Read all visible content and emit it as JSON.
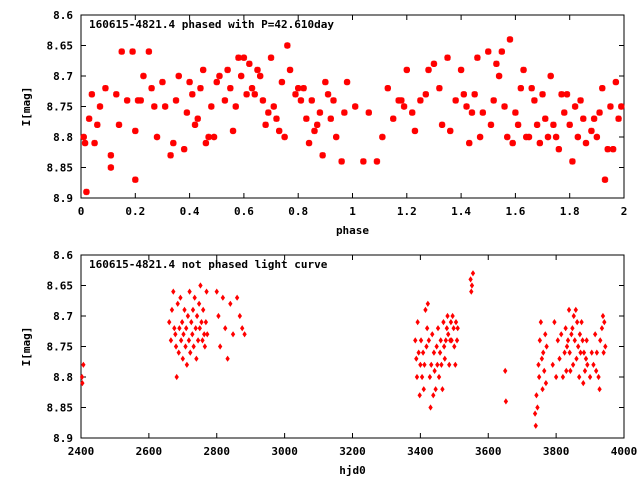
{
  "chart_data": [
    {
      "type": "scatter",
      "title": "160615-4821.4 phased with P=42.610day",
      "xlabel": "phase",
      "ylabel": "I[mag]",
      "xlim": [
        0,
        2
      ],
      "ylim": [
        8.6,
        8.9
      ],
      "y_inverted": true,
      "xticks": [
        "0",
        "0.2",
        "0.4",
        "0.6",
        "0.8",
        "1",
        "1.2",
        "1.4",
        "1.6",
        "1.8",
        "2"
      ],
      "yticks": [
        "8.6",
        "8.65",
        "8.7",
        "8.75",
        "8.8",
        "8.85",
        "8.9"
      ],
      "marker_color": "#ff0000",
      "marker": "star",
      "points": [
        [
          0.01,
          8.8
        ],
        [
          0.015,
          8.81
        ],
        [
          0.02,
          8.89
        ],
        [
          0.03,
          8.77
        ],
        [
          0.04,
          8.73
        ],
        [
          0.05,
          8.81
        ],
        [
          0.06,
          8.78
        ],
        [
          0.07,
          8.75
        ],
        [
          0.09,
          8.72
        ],
        [
          0.11,
          8.83
        ],
        [
          0.11,
          8.85
        ],
        [
          0.13,
          8.73
        ],
        [
          0.14,
          8.78
        ],
        [
          0.15,
          8.66
        ],
        [
          0.17,
          8.74
        ],
        [
          0.19,
          8.66
        ],
        [
          0.2,
          8.87
        ],
        [
          0.2,
          8.79
        ],
        [
          0.21,
          8.74
        ],
        [
          0.22,
          8.74
        ],
        [
          0.23,
          8.7
        ],
        [
          0.25,
          8.66
        ],
        [
          0.26,
          8.72
        ],
        [
          0.27,
          8.75
        ],
        [
          0.28,
          8.8
        ],
        [
          0.3,
          8.71
        ],
        [
          0.31,
          8.75
        ],
        [
          0.33,
          8.83
        ],
        [
          0.34,
          8.81
        ],
        [
          0.35,
          8.74
        ],
        [
          0.36,
          8.7
        ],
        [
          0.38,
          8.82
        ],
        [
          0.39,
          8.76
        ],
        [
          0.4,
          8.71
        ],
        [
          0.41,
          8.73
        ],
        [
          0.42,
          8.78
        ],
        [
          0.43,
          8.77
        ],
        [
          0.44,
          8.72
        ],
        [
          0.45,
          8.69
        ],
        [
          0.46,
          8.81
        ],
        [
          0.47,
          8.8
        ],
        [
          0.48,
          8.75
        ],
        [
          0.49,
          8.8
        ],
        [
          0.5,
          8.71
        ],
        [
          0.51,
          8.7
        ],
        [
          0.53,
          8.74
        ],
        [
          0.54,
          8.69
        ],
        [
          0.55,
          8.72
        ],
        [
          0.56,
          8.79
        ],
        [
          0.57,
          8.75
        ],
        [
          0.58,
          8.67
        ],
        [
          0.59,
          8.7
        ],
        [
          0.6,
          8.67
        ],
        [
          0.61,
          8.73
        ],
        [
          0.62,
          8.68
        ],
        [
          0.63,
          8.72
        ],
        [
          0.64,
          8.73
        ],
        [
          0.65,
          8.69
        ],
        [
          0.66,
          8.7
        ],
        [
          0.67,
          8.74
        ],
        [
          0.68,
          8.78
        ],
        [
          0.69,
          8.76
        ],
        [
          0.7,
          8.67
        ],
        [
          0.71,
          8.75
        ],
        [
          0.72,
          8.77
        ],
        [
          0.73,
          8.79
        ],
        [
          0.74,
          8.71
        ],
        [
          0.75,
          8.8
        ],
        [
          0.76,
          8.65
        ],
        [
          0.77,
          8.69
        ],
        [
          0.79,
          8.73
        ],
        [
          0.8,
          8.72
        ],
        [
          0.81,
          8.74
        ],
        [
          0.82,
          8.72
        ],
        [
          0.83,
          8.77
        ],
        [
          0.84,
          8.81
        ],
        [
          0.85,
          8.74
        ],
        [
          0.86,
          8.79
        ],
        [
          0.87,
          8.78
        ],
        [
          0.88,
          8.76
        ],
        [
          0.89,
          8.83
        ],
        [
          0.9,
          8.71
        ],
        [
          0.91,
          8.73
        ],
        [
          0.92,
          8.77
        ],
        [
          0.93,
          8.74
        ],
        [
          0.94,
          8.8
        ],
        [
          0.96,
          8.84
        ],
        [
          0.97,
          8.76
        ],
        [
          0.98,
          8.71
        ],
        [
          1.01,
          8.75
        ],
        [
          1.04,
          8.84
        ],
        [
          1.06,
          8.76
        ],
        [
          1.09,
          8.84
        ],
        [
          1.11,
          8.8
        ],
        [
          1.13,
          8.72
        ],
        [
          1.15,
          8.77
        ],
        [
          1.17,
          8.74
        ],
        [
          1.18,
          8.74
        ],
        [
          1.19,
          8.75
        ],
        [
          1.2,
          8.69
        ],
        [
          1.22,
          8.76
        ],
        [
          1.23,
          8.79
        ],
        [
          1.25,
          8.74
        ],
        [
          1.27,
          8.73
        ],
        [
          1.28,
          8.69
        ],
        [
          1.3,
          8.68
        ],
        [
          1.32,
          8.72
        ],
        [
          1.33,
          8.78
        ],
        [
          1.35,
          8.67
        ],
        [
          1.36,
          8.79
        ],
        [
          1.38,
          8.74
        ],
        [
          1.4,
          8.69
        ],
        [
          1.41,
          8.73
        ],
        [
          1.42,
          8.75
        ],
        [
          1.43,
          8.81
        ],
        [
          1.44,
          8.76
        ],
        [
          1.45,
          8.73
        ],
        [
          1.46,
          8.67
        ],
        [
          1.47,
          8.8
        ],
        [
          1.48,
          8.76
        ],
        [
          1.5,
          8.66
        ],
        [
          1.51,
          8.78
        ],
        [
          1.52,
          8.74
        ],
        [
          1.53,
          8.68
        ],
        [
          1.54,
          8.7
        ],
        [
          1.55,
          8.66
        ],
        [
          1.56,
          8.75
        ],
        [
          1.57,
          8.8
        ],
        [
          1.58,
          8.64
        ],
        [
          1.59,
          8.81
        ],
        [
          1.6,
          8.76
        ],
        [
          1.61,
          8.78
        ],
        [
          1.62,
          8.72
        ],
        [
          1.63,
          8.69
        ],
        [
          1.64,
          8.8
        ],
        [
          1.65,
          8.8
        ],
        [
          1.66,
          8.72
        ],
        [
          1.67,
          8.74
        ],
        [
          1.68,
          8.78
        ],
        [
          1.69,
          8.81
        ],
        [
          1.7,
          8.73
        ],
        [
          1.71,
          8.77
        ],
        [
          1.72,
          8.8
        ],
        [
          1.73,
          8.7
        ],
        [
          1.74,
          8.78
        ],
        [
          1.75,
          8.8
        ],
        [
          1.76,
          8.82
        ],
        [
          1.77,
          8.73
        ],
        [
          1.78,
          8.76
        ],
        [
          1.79,
          8.73
        ],
        [
          1.8,
          8.78
        ],
        [
          1.81,
          8.84
        ],
        [
          1.82,
          8.75
        ],
        [
          1.83,
          8.8
        ],
        [
          1.84,
          8.74
        ],
        [
          1.85,
          8.77
        ],
        [
          1.86,
          8.81
        ],
        [
          1.88,
          8.79
        ],
        [
          1.89,
          8.77
        ],
        [
          1.9,
          8.8
        ],
        [
          1.91,
          8.76
        ],
        [
          1.92,
          8.72
        ],
        [
          1.93,
          8.87
        ],
        [
          1.94,
          8.82
        ],
        [
          1.95,
          8.75
        ],
        [
          1.96,
          8.82
        ],
        [
          1.97,
          8.71
        ],
        [
          1.98,
          8.77
        ],
        [
          1.99,
          8.75
        ]
      ]
    },
    {
      "type": "scatter",
      "title": "160615-4821.4 not phased light curve",
      "xlabel": "hjd0",
      "ylabel": "I[mag]",
      "xlim": [
        2400,
        4000
      ],
      "ylim": [
        8.6,
        8.9
      ],
      "y_inverted": true,
      "xticks": [
        "2400",
        "2600",
        "2800",
        "3000",
        "3200",
        "3400",
        "3600",
        "3800",
        "4000"
      ],
      "yticks": [
        "8.6",
        "8.65",
        "8.7",
        "8.75",
        "8.8",
        "8.85",
        "8.9"
      ],
      "marker_color": "#ff0000",
      "marker": "diamond",
      "points": [
        [
          2403,
          8.8
        ],
        [
          2404,
          8.81
        ],
        [
          2407,
          8.78
        ],
        [
          2660,
          8.71
        ],
        [
          2665,
          8.74
        ],
        [
          2668,
          8.69
        ],
        [
          2672,
          8.66
        ],
        [
          2675,
          8.72
        ],
        [
          2678,
          8.73
        ],
        [
          2680,
          8.75
        ],
        [
          2682,
          8.8
        ],
        [
          2685,
          8.68
        ],
        [
          2688,
          8.76
        ],
        [
          2690,
          8.72
        ],
        [
          2693,
          8.67
        ],
        [
          2695,
          8.74
        ],
        [
          2698,
          8.71
        ],
        [
          2700,
          8.77
        ],
        [
          2702,
          8.73
        ],
        [
          2705,
          8.69
        ],
        [
          2708,
          8.75
        ],
        [
          2710,
          8.72
        ],
        [
          2712,
          8.78
        ],
        [
          2715,
          8.7
        ],
        [
          2718,
          8.74
        ],
        [
          2720,
          8.66
        ],
        [
          2722,
          8.76
        ],
        [
          2725,
          8.71
        ],
        [
          2728,
          8.73
        ],
        [
          2730,
          8.69
        ],
        [
          2732,
          8.75
        ],
        [
          2735,
          8.67
        ],
        [
          2738,
          8.72
        ],
        [
          2740,
          8.77
        ],
        [
          2742,
          8.7
        ],
        [
          2745,
          8.74
        ],
        [
          2748,
          8.68
        ],
        [
          2750,
          8.72
        ],
        [
          2752,
          8.65
        ],
        [
          2755,
          8.71
        ],
        [
          2758,
          8.74
        ],
        [
          2760,
          8.69
        ],
        [
          2763,
          8.73
        ],
        [
          2765,
          8.75
        ],
        [
          2768,
          8.71
        ],
        [
          2770,
          8.66
        ],
        [
          2772,
          8.73
        ],
        [
          2800,
          8.66
        ],
        [
          2805,
          8.7
        ],
        [
          2810,
          8.75
        ],
        [
          2818,
          8.67
        ],
        [
          2825,
          8.72
        ],
        [
          2832,
          8.77
        ],
        [
          2840,
          8.68
        ],
        [
          2848,
          8.73
        ],
        [
          2860,
          8.67
        ],
        [
          2868,
          8.7
        ],
        [
          2875,
          8.72
        ],
        [
          2882,
          8.73
        ],
        [
          3385,
          8.74
        ],
        [
          3388,
          8.77
        ],
        [
          3390,
          8.8
        ],
        [
          3392,
          8.71
        ],
        [
          3395,
          8.76
        ],
        [
          3398,
          8.83
        ],
        [
          3400,
          8.78
        ],
        [
          3402,
          8.74
        ],
        [
          3405,
          8.8
        ],
        [
          3408,
          8.76
        ],
        [
          3410,
          8.82
        ],
        [
          3412,
          8.78
        ],
        [
          3415,
          8.69
        ],
        [
          3418,
          8.75
        ],
        [
          3420,
          8.72
        ],
        [
          3422,
          8.68
        ],
        [
          3425,
          8.74
        ],
        [
          3428,
          8.8
        ],
        [
          3430,
          8.85
        ],
        [
          3432,
          8.78
        ],
        [
          3435,
          8.73
        ],
        [
          3438,
          8.83
        ],
        [
          3440,
          8.76
        ],
        [
          3442,
          8.79
        ],
        [
          3445,
          8.82
        ],
        [
          3448,
          8.75
        ],
        [
          3450,
          8.78
        ],
        [
          3452,
          8.72
        ],
        [
          3455,
          8.8
        ],
        [
          3458,
          8.76
        ],
        [
          3460,
          8.74
        ],
        [
          3462,
          8.78
        ],
        [
          3465,
          8.82
        ],
        [
          3468,
          8.71
        ],
        [
          3470,
          8.75
        ],
        [
          3472,
          8.77
        ],
        [
          3475,
          8.74
        ],
        [
          3478,
          8.72
        ],
        [
          3480,
          8.7
        ],
        [
          3482,
          8.73
        ],
        [
          3485,
          8.78
        ],
        [
          3488,
          8.74
        ],
        [
          3490,
          8.71
        ],
        [
          3492,
          8.74
        ],
        [
          3495,
          8.7
        ],
        [
          3498,
          8.72
        ],
        [
          3500,
          8.75
        ],
        [
          3503,
          8.78
        ],
        [
          3505,
          8.71
        ],
        [
          3508,
          8.74
        ],
        [
          3510,
          8.72
        ],
        [
          3548,
          8.64
        ],
        [
          3550,
          8.66
        ],
        [
          3552,
          8.65
        ],
        [
          3555,
          8.63
        ],
        [
          3650,
          8.79
        ],
        [
          3652,
          8.84
        ],
        [
          3738,
          8.86
        ],
        [
          3740,
          8.88
        ],
        [
          3742,
          8.83
        ],
        [
          3745,
          8.85
        ],
        [
          3748,
          8.78
        ],
        [
          3750,
          8.8
        ],
        [
          3752,
          8.74
        ],
        [
          3755,
          8.71
        ],
        [
          3758,
          8.77
        ],
        [
          3760,
          8.82
        ],
        [
          3762,
          8.76
        ],
        [
          3765,
          8.79
        ],
        [
          3768,
          8.73
        ],
        [
          3770,
          8.81
        ],
        [
          3772,
          8.75
        ],
        [
          3790,
          8.78
        ],
        [
          3795,
          8.71
        ],
        [
          3800,
          8.8
        ],
        [
          3805,
          8.74
        ],
        [
          3810,
          8.77
        ],
        [
          3815,
          8.73
        ],
        [
          3820,
          8.8
        ],
        [
          3825,
          8.76
        ],
        [
          3828,
          8.72
        ],
        [
          3830,
          8.79
        ],
        [
          3832,
          8.75
        ],
        [
          3835,
          8.74
        ],
        [
          3838,
          8.69
        ],
        [
          3840,
          8.76
        ],
        [
          3842,
          8.79
        ],
        [
          3845,
          8.73
        ],
        [
          3848,
          8.72
        ],
        [
          3850,
          8.78
        ],
        [
          3852,
          8.7
        ],
        [
          3855,
          8.74
        ],
        [
          3858,
          8.69
        ],
        [
          3860,
          8.77
        ],
        [
          3862,
          8.71
        ],
        [
          3865,
          8.75
        ],
        [
          3868,
          8.8
        ],
        [
          3870,
          8.73
        ],
        [
          3872,
          8.76
        ],
        [
          3875,
          8.71
        ],
        [
          3878,
          8.74
        ],
        [
          3880,
          8.81
        ],
        [
          3882,
          8.76
        ],
        [
          3885,
          8.79
        ],
        [
          3888,
          8.77
        ],
        [
          3890,
          8.74
        ],
        [
          3892,
          8.78
        ],
        [
          3900,
          8.8
        ],
        [
          3905,
          8.76
        ],
        [
          3910,
          8.78
        ],
        [
          3915,
          8.73
        ],
        [
          3918,
          8.79
        ],
        [
          3920,
          8.76
        ],
        [
          3925,
          8.8
        ],
        [
          3928,
          8.82
        ],
        [
          3930,
          8.74
        ],
        [
          3935,
          8.72
        ],
        [
          3938,
          8.7
        ],
        [
          3940,
          8.76
        ],
        [
          3942,
          8.71
        ],
        [
          3945,
          8.75
        ]
      ]
    }
  ]
}
